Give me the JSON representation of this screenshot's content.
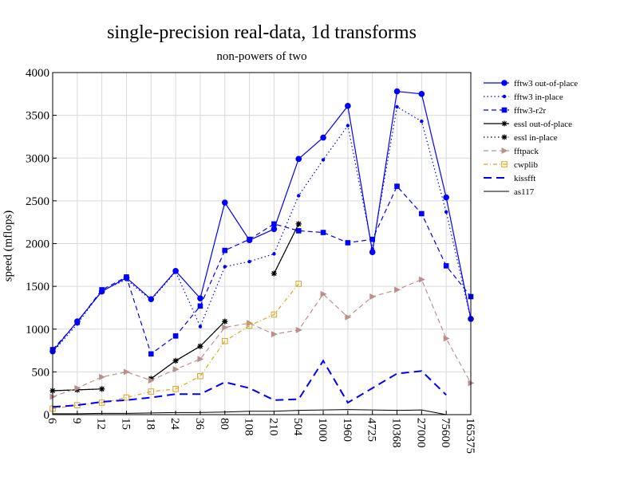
{
  "chart_data": {
    "type": "line",
    "title": "single-precision real-data, 1d transforms",
    "subtitle": "non-powers of two",
    "xlabel": "",
    "ylabel": "speed (mflops)",
    "categories": [
      "6",
      "9",
      "12",
      "15",
      "18",
      "24",
      "36",
      "80",
      "108",
      "210",
      "504",
      "1000",
      "1960",
      "4725",
      "10368",
      "27000",
      "75600",
      "165375"
    ],
    "yticks": [
      "0",
      "500",
      "1000",
      "1500",
      "2000",
      "2500",
      "3000",
      "3500",
      "4000"
    ],
    "ylim": [
      0,
      4000
    ],
    "grid": true,
    "legend_position": "top-right",
    "series": [
      {
        "name": "fftw3 out-of-place",
        "color": "#0000ff",
        "dash": "solid",
        "marker": "circle",
        "values": [
          740,
          1090,
          1440,
          1600,
          1350,
          1680,
          1360,
          2480,
          2040,
          2170,
          2990,
          3240,
          3610,
          1900,
          3780,
          3750,
          2540,
          1120
        ]
      },
      {
        "name": "fftw3 in-place",
        "color": "#0000ff",
        "dash": "dot",
        "marker": "smallcircle",
        "values": [
          730,
          1060,
          1450,
          1580,
          1340,
          1670,
          1030,
          1730,
          1790,
          1880,
          2560,
          2980,
          3380,
          1940,
          3600,
          3430,
          2370,
          1120
        ]
      },
      {
        "name": "fftw3-r2r",
        "color": "#0000ff",
        "dash": "dash",
        "marker": "square",
        "values": [
          760,
          1080,
          1460,
          1610,
          710,
          920,
          1270,
          1920,
          2050,
          2230,
          2150,
          2130,
          2010,
          2050,
          2670,
          2350,
          1740,
          1380
        ]
      },
      {
        "name": "essl out-of-place",
        "color": "#000000",
        "dash": "solid",
        "marker": "star",
        "values": [
          280,
          290,
          300,
          null,
          420,
          630,
          800,
          1090,
          null,
          1650,
          2230,
          null,
          null,
          null,
          null,
          null,
          null,
          null
        ]
      },
      {
        "name": "essl in-place",
        "color": "#000000",
        "dash": "dot",
        "marker": "star",
        "values": [
          280,
          290,
          300,
          null,
          420,
          630,
          800,
          1090,
          null,
          1650,
          2230,
          null,
          null,
          null,
          null,
          null,
          null,
          null
        ]
      },
      {
        "name": "fftpack",
        "color": "#bc8f8f",
        "dash": "dash",
        "marker": "triangle",
        "values": [
          210,
          310,
          440,
          500,
          400,
          530,
          650,
          1020,
          1070,
          940,
          990,
          1410,
          1140,
          1380,
          1460,
          1580,
          890,
          370
        ]
      },
      {
        "name": "cwplib",
        "color": "#daa520",
        "dash": "dashdot",
        "marker": "opensquare",
        "values": [
          70,
          110,
          140,
          200,
          270,
          300,
          450,
          860,
          1040,
          1170,
          1530,
          null,
          null,
          null,
          null,
          null,
          null,
          null
        ]
      },
      {
        "name": "kissfft",
        "color": "#0000ff",
        "dash": "longdash",
        "marker": "none",
        "values": [
          90,
          110,
          150,
          170,
          200,
          240,
          240,
          380,
          310,
          170,
          180,
          630,
          140,
          310,
          480,
          510,
          230,
          null
        ]
      },
      {
        "name": "as117",
        "color": "#000000",
        "dash": "solid",
        "marker": "none",
        "thin": true,
        "values": [
          10,
          10,
          15,
          15,
          20,
          25,
          25,
          30,
          40,
          40,
          50,
          55,
          60,
          55,
          50,
          55,
          0,
          null
        ]
      }
    ]
  }
}
